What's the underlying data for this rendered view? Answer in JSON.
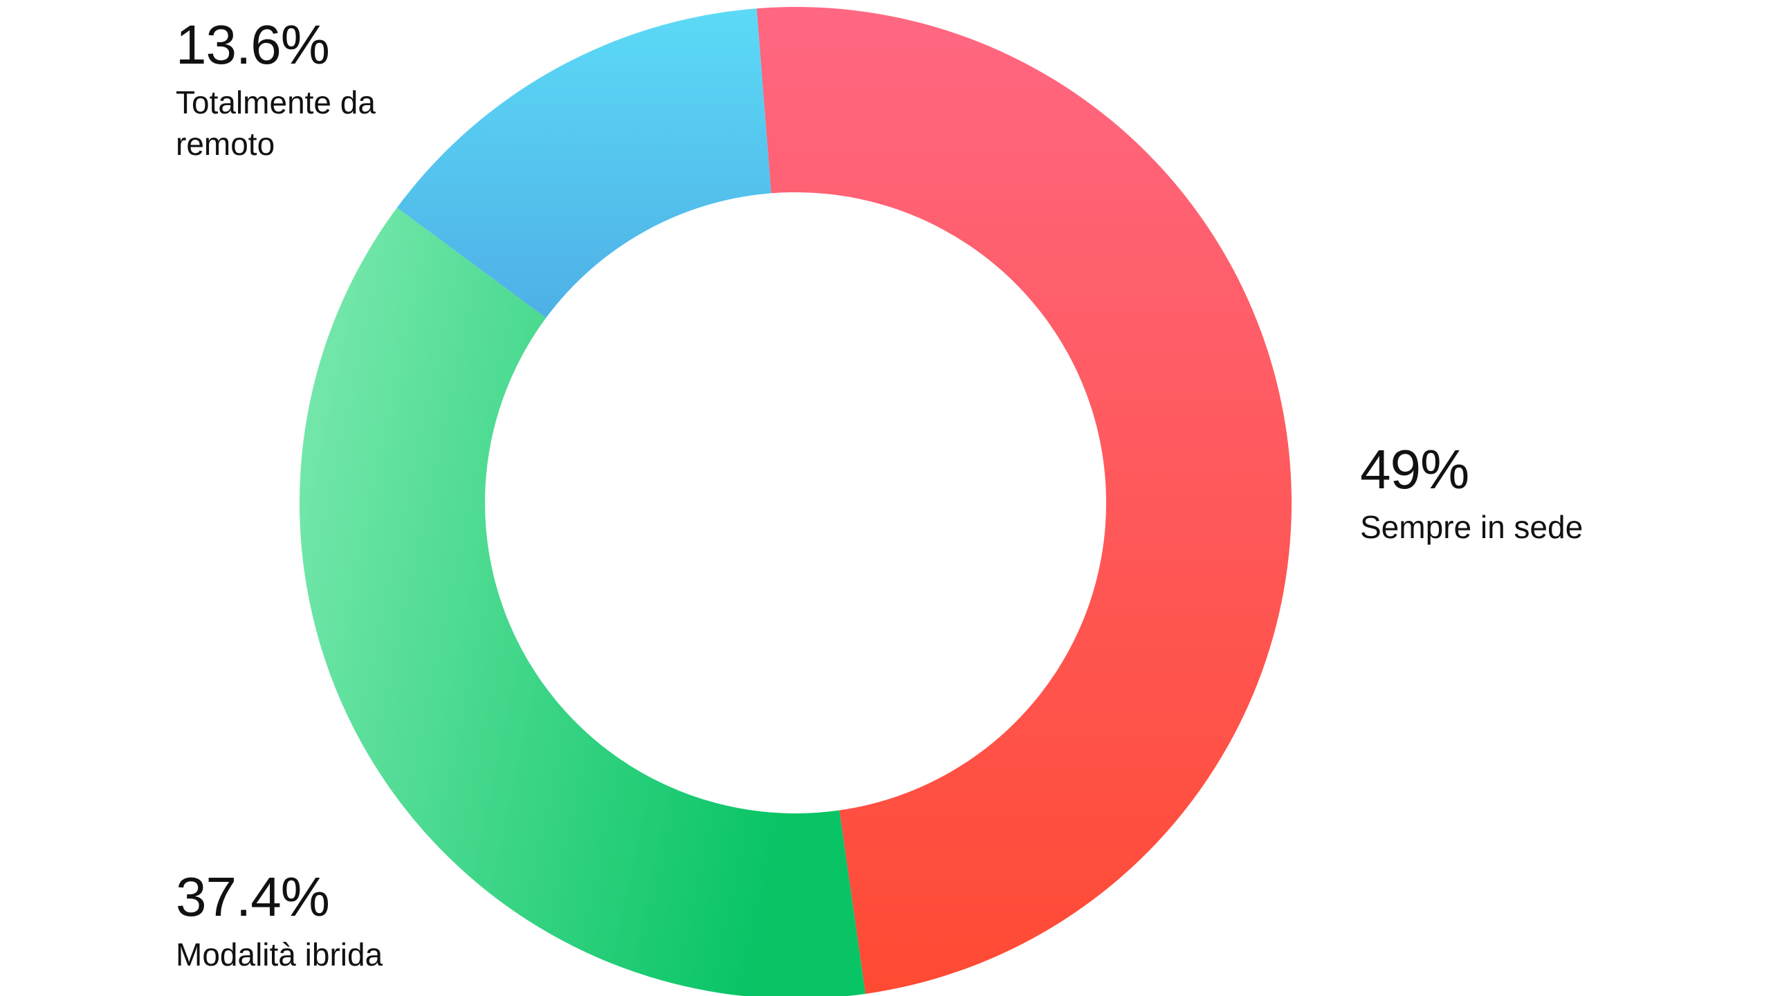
{
  "chart_data": {
    "type": "donut",
    "categories": [
      "Sempre in sede",
      "Modalità ibrida",
      "Totalmente da remoto"
    ],
    "values": [
      49,
      37.4,
      13.6
    ],
    "value_labels": [
      "49%",
      "37.4%",
      "13.6%"
    ],
    "colors": [
      [
        "#ff6782",
        "#ff4a33"
      ],
      [
        "#7deab0",
        "#08c465"
      ],
      [
        "#5cdaf6",
        "#4eb0e6"
      ]
    ]
  }
}
